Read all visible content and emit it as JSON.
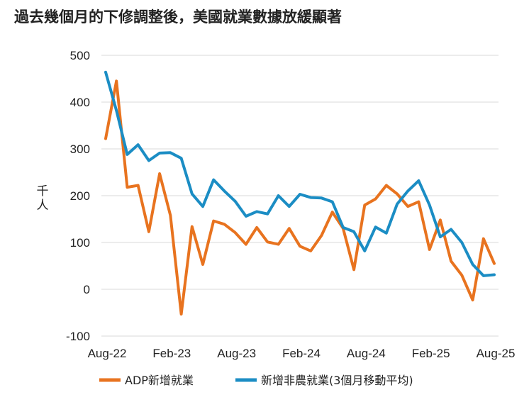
{
  "chart_data": {
    "type": "line",
    "title": "過去幾個月的下修調整後，美國就業數據放緩顯著",
    "ylabel": "千人",
    "xlabel": "",
    "ylim": [
      -100,
      500
    ],
    "yticks": [
      -100,
      0,
      100,
      200,
      300,
      400,
      500
    ],
    "xtick_labels": [
      "Aug-22",
      "Feb-23",
      "Aug-23",
      "Feb-24",
      "Aug-24",
      "Feb-25",
      "Aug-25"
    ],
    "grid": true,
    "legend_position": "bottom",
    "categories": [
      "Aug-22",
      "Sep-22",
      "Oct-22",
      "Nov-22",
      "Dec-22",
      "Jan-23",
      "Feb-23",
      "Mar-23",
      "Apr-23",
      "May-23",
      "Jun-23",
      "Jul-23",
      "Aug-23",
      "Sep-23",
      "Oct-23",
      "Nov-23",
      "Dec-23",
      "Jan-24",
      "Feb-24",
      "Mar-24",
      "Apr-24",
      "May-24",
      "Jun-24",
      "Jul-24",
      "Aug-24",
      "Sep-24",
      "Oct-24",
      "Nov-24",
      "Dec-24",
      "Jan-25",
      "Feb-25",
      "Mar-25",
      "Apr-25",
      "May-25",
      "Jun-25",
      "Jul-25",
      "Aug-25"
    ],
    "series": [
      {
        "name": "ADP新增就業",
        "color": "#e8731f",
        "values": [
          322,
          445,
          218,
          222,
          123,
          247,
          158,
          -53,
          134,
          53,
          146,
          139,
          121,
          96,
          132,
          101,
          96,
          130,
          92,
          82,
          115,
          165,
          130,
          42,
          180,
          193,
          222,
          204,
          177,
          187,
          85,
          148,
          60,
          30,
          -23,
          108,
          55
        ]
      },
      {
        "name": "新增非農就業(3個月移動平均)",
        "color": "#1b8dc4",
        "values": [
          464,
          382,
          288,
          309,
          275,
          291,
          292,
          280,
          204,
          177,
          234,
          210,
          188,
          156,
          166,
          161,
          200,
          177,
          203,
          196,
          195,
          187,
          132,
          123,
          82,
          133,
          120,
          182,
          210,
          232,
          180,
          112,
          128,
          100,
          53,
          29,
          31
        ]
      }
    ]
  }
}
